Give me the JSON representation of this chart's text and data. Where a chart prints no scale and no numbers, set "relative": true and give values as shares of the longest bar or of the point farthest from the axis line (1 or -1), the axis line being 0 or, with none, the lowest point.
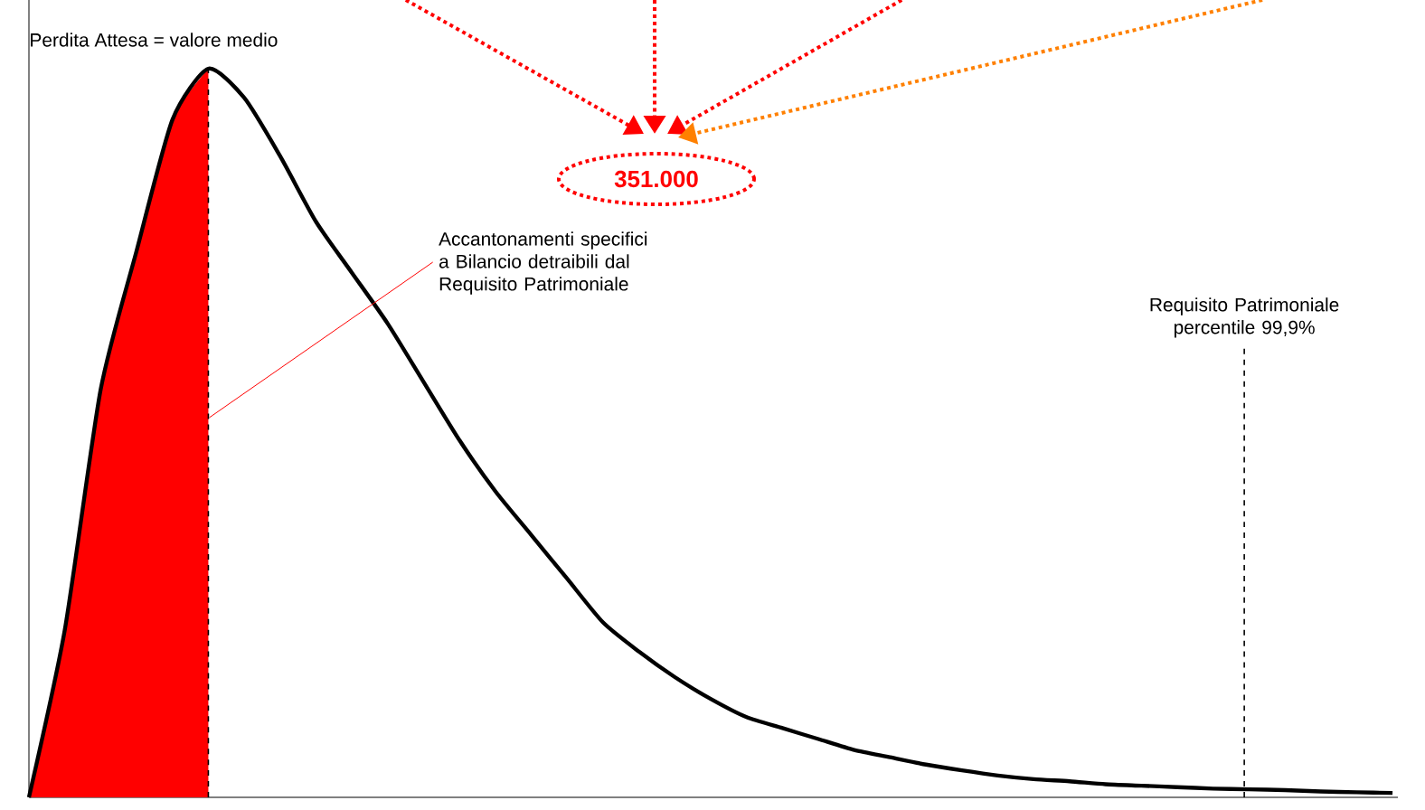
{
  "chart_data": {
    "type": "line",
    "relative": true,
    "categories": [
      null,
      null,
      null,
      null,
      null,
      null,
      null,
      null,
      null,
      null,
      null,
      null,
      null,
      null,
      null,
      null,
      null,
      null,
      null,
      null,
      null,
      null,
      null,
      null,
      null,
      null,
      null,
      null,
      null,
      null,
      null,
      null,
      null,
      null,
      null,
      null,
      null,
      null,
      null
    ],
    "series": [
      {
        "type": "area",
        "color": "#ff0000",
        "values": [
          0,
          0.23,
          0.56,
          0.75,
          0.93,
          1,
          null,
          null,
          null,
          null,
          null,
          null,
          null,
          null,
          null,
          null,
          null,
          null,
          null,
          null,
          null,
          null,
          null,
          null,
          null,
          null,
          null,
          null,
          null,
          null,
          null,
          null,
          null,
          null,
          null,
          null,
          null,
          null,
          null
        ]
      },
      {
        "color": "#000000",
        "values": [
          0,
          0.23,
          0.56,
          0.75,
          0.93,
          1,
          0.96,
          0.88,
          0.79,
          0.72,
          0.65,
          0.57,
          0.49,
          0.42,
          0.36,
          0.3,
          0.24,
          0.2,
          0.165,
          0.135,
          0.11,
          0.095,
          0.08,
          0.065,
          0.055,
          0.045,
          0.037,
          0.03,
          0.025,
          0.022,
          0.018,
          0.016,
          0.014,
          0.012,
          0.011,
          0.01,
          0.008,
          0.007,
          0.006
        ]
      }
    ],
    "annotations": [
      "Perdita Attesa = valore medio",
      "Accantonamenti specifici a Bilancio detraibili dal Requisito Patrimoniale",
      "351.000",
      "Requisito Patrimoniale percentile 99,9%"
    ]
  }
}
